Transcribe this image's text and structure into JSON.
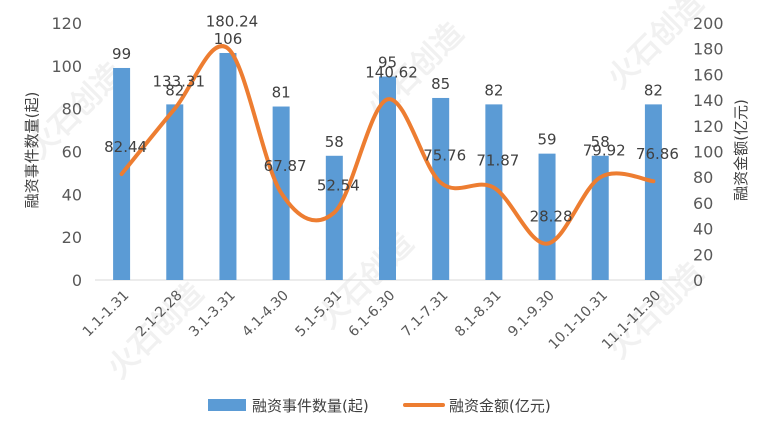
{
  "chart_data": {
    "type": "bar+line",
    "categories": [
      "1.1-1.31",
      "2.1-2.28",
      "3.1-3.31",
      "4.1-4.30",
      "5.1-5.31",
      "6.1-6.30",
      "7.1-7.31",
      "8.1-8.31",
      "9.1-9.30",
      "10.1-10.31",
      "11.1-11.30"
    ],
    "series": [
      {
        "name": "融资事件数量(起)",
        "type": "bar",
        "axis": "left",
        "color": "#5b9bd5",
        "values": [
          99,
          82,
          106,
          81,
          58,
          95,
          85,
          82,
          59,
          58,
          82
        ]
      },
      {
        "name": "融资金额(亿元)",
        "type": "line",
        "axis": "right",
        "color": "#ed7d31",
        "values": [
          82.44,
          133.31,
          180.24,
          67.87,
          52.54,
          140.62,
          75.76,
          71.87,
          28.28,
          79.92,
          76.86
        ]
      }
    ],
    "bar_labels": [
      "99",
      "82",
      "106",
      "81",
      "58",
      "95",
      "85",
      "82",
      "59",
      "58",
      "82"
    ],
    "line_labels": [
      "82.44",
      "133.31",
      "180.24",
      "67.87",
      "52.54",
      "140.62",
      "75.76",
      "71.87",
      "28.28",
      "79.92",
      "76.86"
    ],
    "ylabel_left": "融资事件数量(起)",
    "ylabel_right": "融资金额(亿元)",
    "ylim_left": [
      0,
      120
    ],
    "ylim_right": [
      0,
      200
    ],
    "yticks_left": [
      "0",
      "20",
      "40",
      "60",
      "80",
      "100",
      "120"
    ],
    "yticks_right": [
      "0",
      "20",
      "40",
      "60",
      "80",
      "100",
      "120",
      "140",
      "160",
      "180",
      "200"
    ],
    "grid": false,
    "legend": "bottom"
  },
  "watermark": {
    "text": "火石创造"
  }
}
